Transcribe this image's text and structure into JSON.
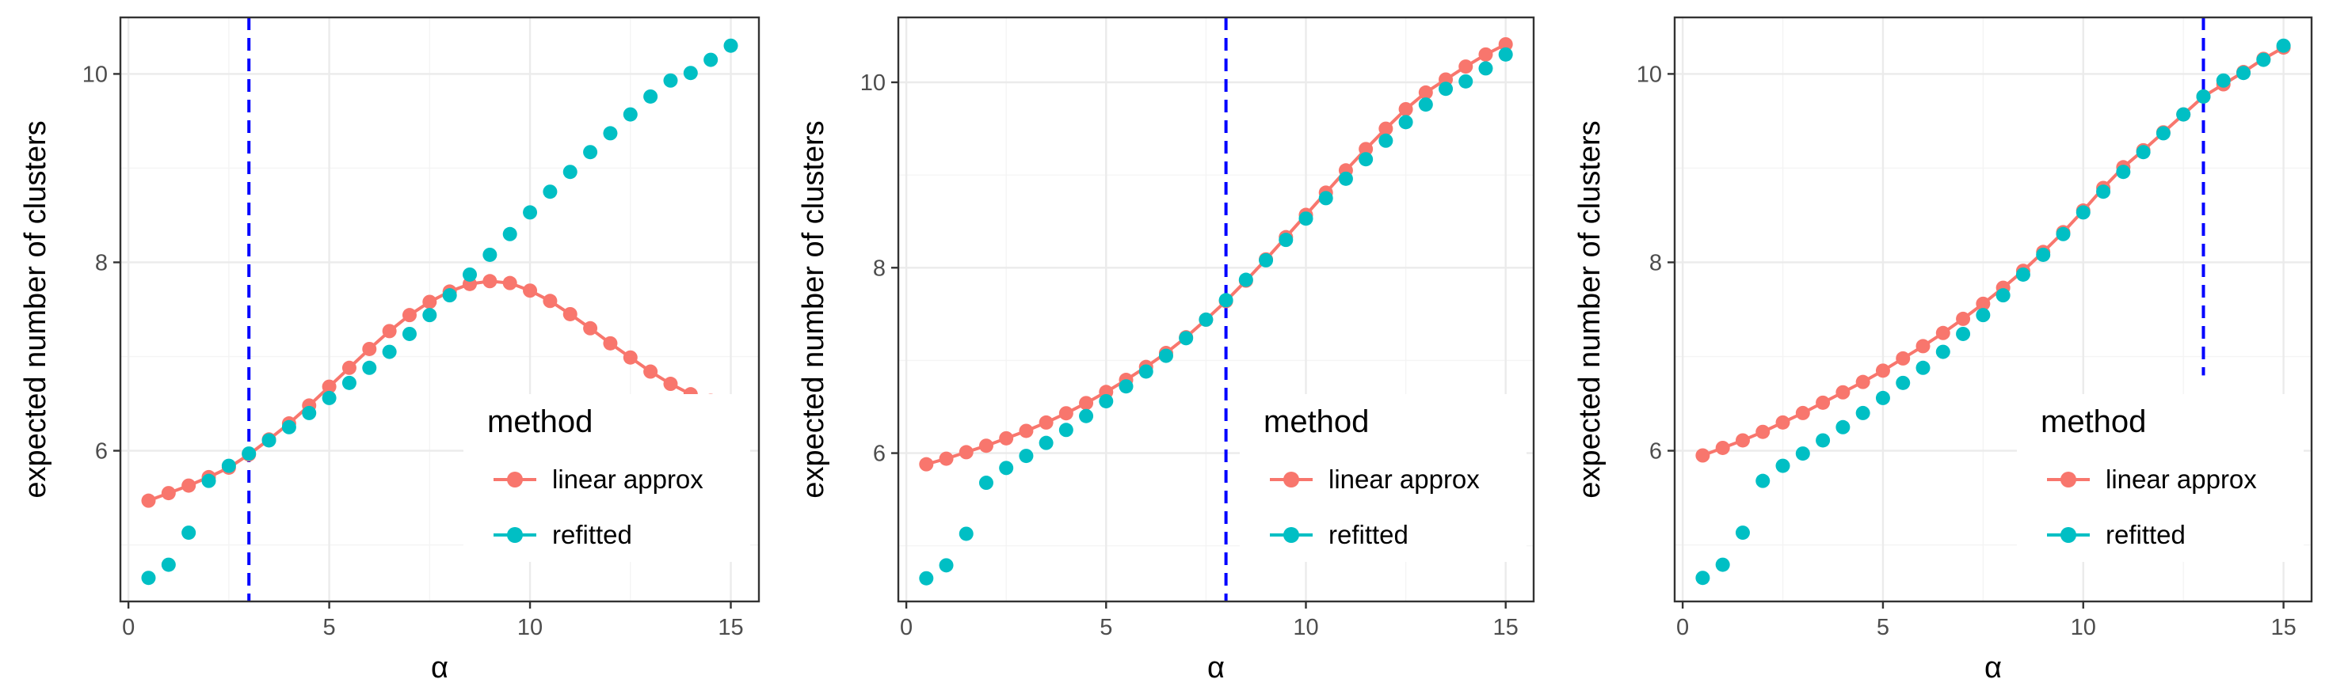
{
  "colors": {
    "linear": "#F8766D",
    "refitted": "#00BFC4",
    "vline": "#0000FF"
  },
  "chart_data": [
    {
      "type": "line",
      "xlabel": "α",
      "ylabel": "expected number of clusters",
      "xlim": [
        -0.2,
        15.7
      ],
      "ylim": [
        4.4,
        10.6
      ],
      "xticks": [
        0,
        5,
        10,
        15
      ],
      "yticks": [
        6,
        8,
        10
      ],
      "xtick_labels": [
        "0",
        "5",
        "10",
        "15"
      ],
      "ytick_labels": [
        "6",
        "8",
        "10"
      ],
      "grid": true,
      "vline": 3,
      "legend": {
        "title": "method",
        "position": "bottom-right",
        "entries": [
          "linear approx",
          "refitted"
        ]
      },
      "x": [
        0.5,
        1,
        1.5,
        2,
        2.5,
        3,
        3.5,
        4,
        4.5,
        5,
        5.5,
        6,
        6.5,
        7,
        7.5,
        8,
        8.5,
        9,
        9.5,
        10,
        10.5,
        11,
        11.5,
        12,
        12.5,
        13,
        13.5,
        14,
        14.5,
        15
      ],
      "series": [
        {
          "name": "linear approx",
          "style": "line+points",
          "values": [
            5.47,
            5.55,
            5.63,
            5.72,
            5.82,
            5.96,
            6.12,
            6.29,
            6.48,
            6.68,
            6.88,
            7.08,
            7.27,
            7.44,
            7.58,
            7.69,
            7.77,
            7.8,
            7.78,
            7.7,
            7.59,
            7.45,
            7.3,
            7.14,
            6.99,
            6.84,
            6.71,
            6.6,
            6.53,
            6.52
          ]
        },
        {
          "name": "refitted",
          "style": "points",
          "values": [
            4.65,
            4.79,
            5.13,
            5.68,
            5.84,
            5.97,
            6.11,
            6.25,
            6.4,
            6.56,
            6.72,
            6.88,
            7.05,
            7.24,
            7.44,
            7.65,
            7.87,
            8.08,
            8.3,
            8.53,
            8.75,
            8.96,
            9.17,
            9.37,
            9.57,
            9.76,
            9.93,
            10.01,
            10.15,
            10.3
          ]
        }
      ]
    },
    {
      "type": "line",
      "xlabel": "α",
      "ylabel": "expected number of clusters",
      "xlim": [
        -0.2,
        15.7
      ],
      "ylim": [
        4.4,
        10.7
      ],
      "xticks": [
        0,
        5,
        10,
        15
      ],
      "yticks": [
        6,
        8,
        10
      ],
      "xtick_labels": [
        "0",
        "5",
        "10",
        "15"
      ],
      "ytick_labels": [
        "6",
        "8",
        "10"
      ],
      "grid": true,
      "vline": 8,
      "legend": {
        "title": "method",
        "position": "bottom-right",
        "entries": [
          "linear approx",
          "refitted"
        ]
      },
      "x": [
        0.5,
        1,
        1.5,
        2,
        2.5,
        3,
        3.5,
        4,
        4.5,
        5,
        5.5,
        6,
        6.5,
        7,
        7.5,
        8,
        8.5,
        9,
        9.5,
        10,
        10.5,
        11,
        11.5,
        12,
        12.5,
        13,
        13.5,
        14,
        14.5,
        15
      ],
      "series": [
        {
          "name": "linear approx",
          "style": "line+points",
          "values": [
            5.88,
            5.94,
            6.01,
            6.08,
            6.16,
            6.24,
            6.33,
            6.43,
            6.54,
            6.66,
            6.79,
            6.93,
            7.08,
            7.25,
            7.44,
            7.64,
            7.86,
            8.09,
            8.33,
            8.57,
            8.81,
            9.05,
            9.28,
            9.5,
            9.71,
            9.89,
            10.03,
            10.17,
            10.3,
            10.41
          ]
        },
        {
          "name": "refitted",
          "style": "points",
          "values": [
            4.65,
            4.79,
            5.13,
            5.68,
            5.84,
            5.97,
            6.11,
            6.25,
            6.4,
            6.56,
            6.72,
            6.88,
            7.05,
            7.24,
            7.44,
            7.65,
            7.87,
            8.08,
            8.3,
            8.53,
            8.75,
            8.96,
            9.17,
            9.37,
            9.57,
            9.76,
            9.93,
            10.01,
            10.15,
            10.3
          ]
        }
      ]
    },
    {
      "type": "line",
      "xlabel": "α",
      "ylabel": "expected number of clusters",
      "xlim": [
        -0.2,
        15.7
      ],
      "ylim": [
        4.4,
        10.6
      ],
      "xticks": [
        0,
        5,
        10,
        15
      ],
      "yticks": [
        6,
        8,
        10
      ],
      "xtick_labels": [
        "0",
        "5",
        "10",
        "15"
      ],
      "ytick_labels": [
        "6",
        "8",
        "10"
      ],
      "grid": true,
      "vline": 13,
      "vline_range": [
        6.8,
        10.6
      ],
      "legend": {
        "title": "method",
        "position": "bottom-right",
        "entries": [
          "linear approx",
          "refitted"
        ]
      },
      "x": [
        0.5,
        1,
        1.5,
        2,
        2.5,
        3,
        3.5,
        4,
        4.5,
        5,
        5.5,
        6,
        6.5,
        7,
        7.5,
        8,
        8.5,
        9,
        9.5,
        10,
        10.5,
        11,
        11.5,
        12,
        12.5,
        13,
        13.5,
        14,
        14.5,
        15
      ],
      "series": [
        {
          "name": "linear approx",
          "style": "line+points",
          "values": [
            5.95,
            6.03,
            6.11,
            6.2,
            6.3,
            6.4,
            6.51,
            6.62,
            6.73,
            6.85,
            6.98,
            7.11,
            7.25,
            7.4,
            7.56,
            7.73,
            7.91,
            8.11,
            8.32,
            8.55,
            8.79,
            9.01,
            9.19,
            9.38,
            9.57,
            9.76,
            9.89,
            10.02,
            10.16,
            10.28
          ]
        },
        {
          "name": "refitted",
          "style": "points",
          "values": [
            4.65,
            4.79,
            5.13,
            5.68,
            5.84,
            5.97,
            6.11,
            6.25,
            6.4,
            6.56,
            6.72,
            6.88,
            7.05,
            7.24,
            7.44,
            7.65,
            7.87,
            8.08,
            8.3,
            8.53,
            8.75,
            8.96,
            9.17,
            9.37,
            9.57,
            9.76,
            9.93,
            10.01,
            10.15,
            10.3
          ]
        }
      ]
    }
  ]
}
